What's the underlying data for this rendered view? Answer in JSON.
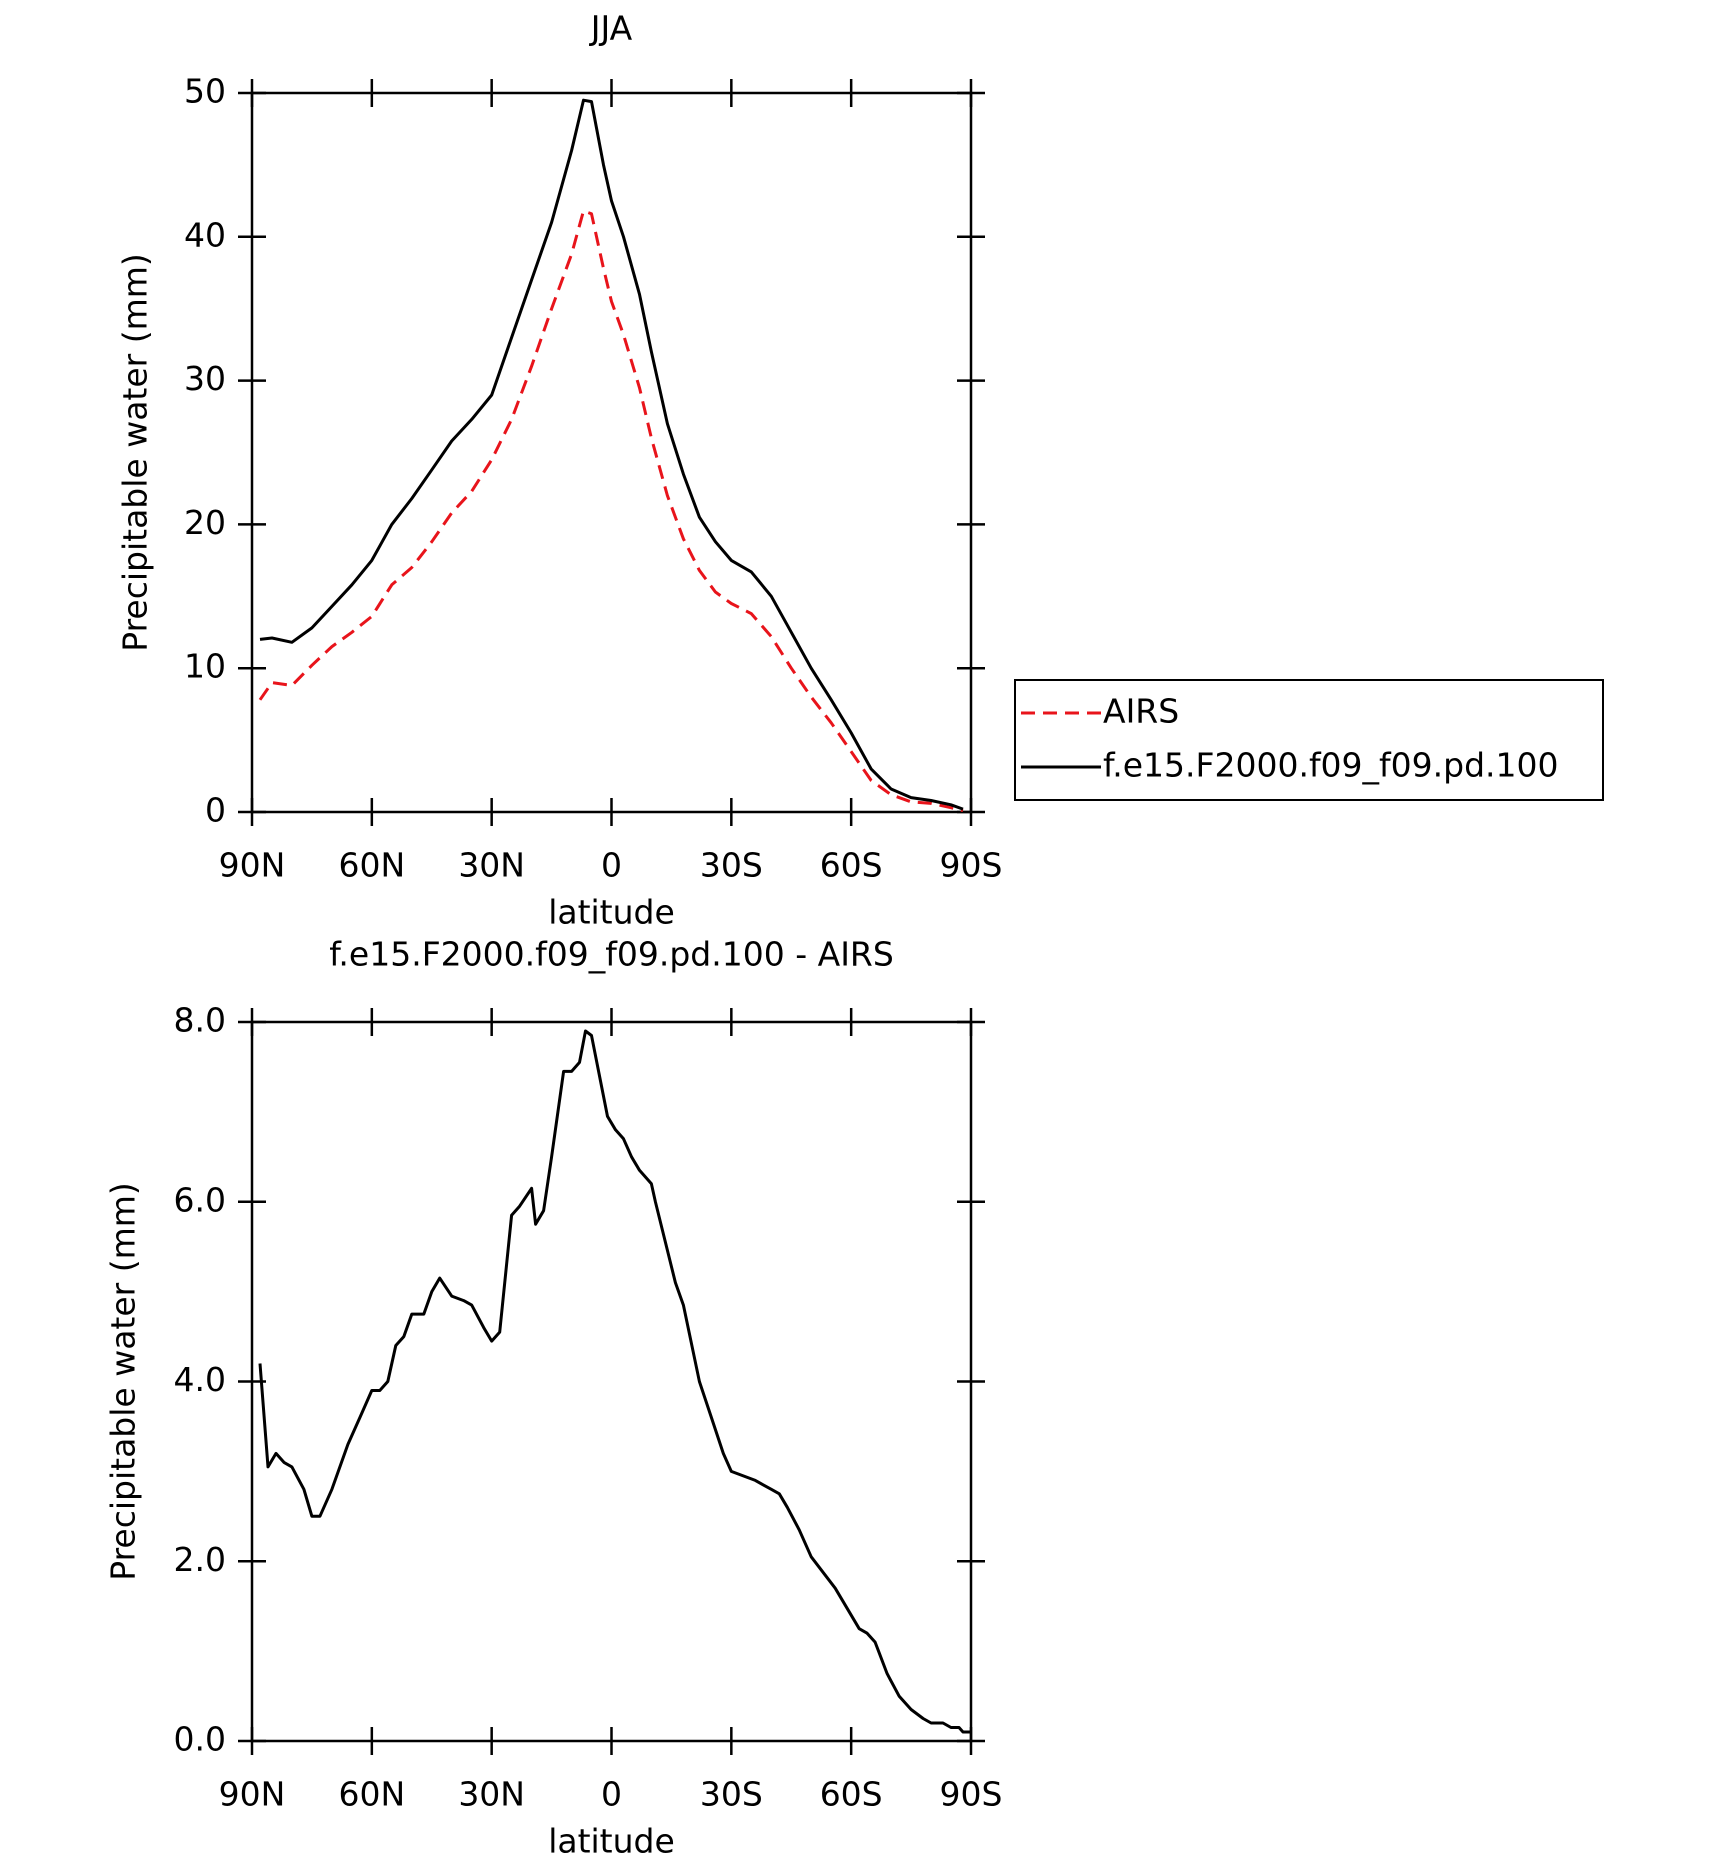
{
  "chart_data": [
    {
      "type": "line",
      "title": "JJA",
      "x_label": "latitude",
      "y_label": "Precipitable water (mm)",
      "x": [
        88,
        85,
        80,
        75,
        70,
        65,
        60,
        55,
        50,
        45,
        40,
        35,
        30,
        25,
        20,
        15,
        10,
        7,
        5,
        2,
        0,
        -3,
        -7,
        -10,
        -14,
        -18,
        -22,
        -26,
        -30,
        -35,
        -40,
        -45,
        -50,
        -55,
        -60,
        -65,
        -70,
        -75,
        -80,
        -85,
        -88
      ],
      "series": [
        {
          "name": "AIRS",
          "color": "#e8141b",
          "dashed": true,
          "values": [
            7.8,
            9.0,
            8.8,
            10.2,
            11.5,
            12.5,
            13.6,
            15.8,
            17.0,
            18.8,
            20.8,
            22.3,
            24.5,
            27.3,
            31.0,
            35.0,
            38.8,
            41.8,
            41.6,
            37.8,
            35.5,
            33.2,
            29.5,
            26.0,
            22.0,
            19.0,
            16.8,
            15.3,
            14.5,
            13.8,
            12.2,
            10.0,
            8.0,
            6.2,
            4.2,
            2.2,
            1.2,
            0.7,
            0.6,
            0.3,
            0.1
          ]
        },
        {
          "name": "f.e15.F2000.f09_f09.pd.100",
          "color": "#000000",
          "dashed": false,
          "values": [
            12.0,
            12.1,
            11.8,
            12.8,
            14.3,
            15.8,
            17.5,
            20.0,
            21.8,
            23.8,
            25.8,
            27.3,
            29.0,
            33.0,
            37.0,
            41.0,
            46.0,
            49.5,
            49.4,
            45.0,
            42.5,
            40.0,
            36.0,
            32.0,
            27.0,
            23.5,
            20.5,
            18.8,
            17.5,
            16.7,
            15.0,
            12.5,
            10.0,
            7.8,
            5.5,
            3.0,
            1.6,
            1.0,
            0.8,
            0.5,
            0.2
          ]
        }
      ],
      "xlim": [
        90,
        -90
      ],
      "xticks": [
        {
          "value": 90,
          "label": "90N"
        },
        {
          "value": 60,
          "label": "60N"
        },
        {
          "value": 30,
          "label": "30N"
        },
        0,
        {
          "value": -30,
          "label": "30S"
        },
        {
          "value": -60,
          "label": "60S"
        },
        {
          "value": -90,
          "label": "90S"
        }
      ],
      "ylim": [
        0,
        50
      ],
      "yticks": [
        0,
        10,
        20,
        30,
        40,
        50
      ],
      "legend": "right"
    },
    {
      "type": "line",
      "title": "f.e15.F2000.f09_f09.pd.100 - AIRS",
      "x_label": "latitude",
      "y_label": "Precipitable water (mm)",
      "x": [
        88,
        86,
        84,
        82,
        80,
        77,
        75,
        73,
        70,
        66,
        63,
        60,
        58,
        56,
        54,
        52,
        50,
        47,
        45,
        43,
        40,
        37,
        35,
        32,
        30,
        28,
        25,
        23,
        20,
        19,
        17,
        15,
        12,
        10,
        8,
        6.5,
        5,
        3,
        1,
        -1,
        -3,
        -5,
        -7,
        -10,
        -11,
        -16,
        -18,
        -22,
        -25,
        -28,
        -30,
        -33,
        -36,
        -38,
        -40,
        -42,
        -44,
        -47,
        -50,
        -56,
        -60,
        -62,
        -64,
        -66,
        -69,
        -72,
        -75,
        -78,
        -80,
        -83,
        -85,
        -87,
        -88,
        -90
      ],
      "values": [
        4.2,
        3.05,
        3.2,
        3.1,
        3.05,
        2.8,
        2.5,
        2.5,
        2.8,
        3.3,
        3.6,
        3.9,
        3.9,
        4.0,
        4.4,
        4.5,
        4.75,
        4.75,
        5.0,
        5.15,
        4.95,
        4.9,
        4.85,
        4.6,
        4.45,
        4.55,
        5.85,
        5.95,
        6.15,
        5.75,
        5.9,
        6.5,
        7.45,
        7.45,
        7.55,
        7.9,
        7.85,
        7.4,
        6.95,
        6.8,
        6.7,
        6.5,
        6.35,
        6.2,
        6.0,
        5.1,
        4.85,
        4.0,
        3.6,
        3.2,
        3.0,
        2.95,
        2.9,
        2.85,
        2.8,
        2.75,
        2.6,
        2.35,
        2.05,
        1.7,
        1.4,
        1.25,
        1.2,
        1.1,
        0.75,
        0.5,
        0.35,
        0.25,
        0.2,
        0.2,
        0.15,
        0.15,
        0.1,
        0.1
      ],
      "color": "#000000",
      "xlim": [
        90,
        -90
      ],
      "xticks": [
        {
          "value": 90,
          "label": "90N"
        },
        {
          "value": 60,
          "label": "60N"
        },
        {
          "value": 30,
          "label": "30N"
        },
        0,
        {
          "value": -30,
          "label": "30S"
        },
        {
          "value": -60,
          "label": "60S"
        },
        {
          "value": -90,
          "label": "90S"
        }
      ],
      "ylim": [
        0,
        8
      ],
      "yticks": [
        {
          "value": 0,
          "label": "0.0"
        },
        {
          "value": 2,
          "label": "2.0"
        },
        {
          "value": 4,
          "label": "4.0"
        },
        {
          "value": 6,
          "label": "6.0"
        },
        {
          "value": 8,
          "label": "8.0"
        }
      ]
    }
  ]
}
